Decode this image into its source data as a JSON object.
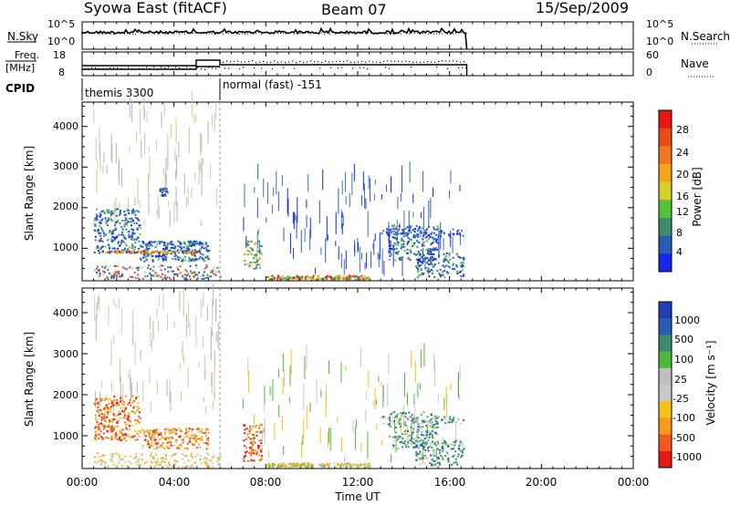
{
  "header": {
    "station": "Syowa East (fitACF)",
    "beam": "Beam 07",
    "date": "15/Sep/2009"
  },
  "colors": {
    "power_scale": [
      "#1428e6",
      "#2a5bb3",
      "#3e8a6e",
      "#59c03c",
      "#d6cf2a",
      "#f4a41a",
      "#f07820",
      "#e84a1a",
      "#e51818"
    ],
    "velocity_scale": [
      "#e51818",
      "#ef5a1e",
      "#f49a1c",
      "#f5c21a",
      "#c8c8c8",
      "#bfbfbf",
      "#4fb83a",
      "#3e8a6e",
      "#2a5bb3",
      "#1e3fb5"
    ]
  },
  "chart_data": [
    {
      "name": "N.Sky / N.Search",
      "type": "line",
      "ylabel_left": "N.Sky",
      "ylabel_right": "N.Search",
      "ytick_left": [
        "10^5",
        "10^0"
      ],
      "ytick_right": [
        "10^5",
        "10^0"
      ],
      "x_range_hours": [
        0,
        24
      ],
      "data_end_hour": 16.75
    },
    {
      "name": "Freq / Nave",
      "type": "line",
      "ylabel_left": "Freq. [MHz]",
      "ylabel_right": "Nave",
      "ytick_left": [
        "18",
        "8"
      ],
      "ytick_right": [
        "60",
        "0"
      ],
      "x_range_hours": [
        0,
        24
      ],
      "data_end_hour": 16.75
    },
    {
      "name": "CPID",
      "type": "table",
      "label": "CPID",
      "segments": [
        {
          "start_hour": 0,
          "end_hour": 6,
          "text": "themis 3300"
        },
        {
          "start_hour": 6,
          "end_hour": 16.75,
          "text": "normal (fast) -151"
        }
      ]
    },
    {
      "name": "Power",
      "type": "heatmap",
      "ylabel": "Slant Range [km]",
      "yticks": [
        "1000",
        "2000",
        "3000",
        "4000"
      ],
      "ylim": [
        200,
        4600
      ],
      "colorbar_label": "Power [dB]",
      "colorbar_ticks": [
        "4",
        "8",
        "12",
        "16",
        "20",
        "24",
        "28"
      ],
      "x_range_hours": [
        0,
        24
      ]
    },
    {
      "name": "Velocity",
      "type": "heatmap",
      "ylabel": "Slant Range [km]",
      "yticks": [
        "1000",
        "2000",
        "3000",
        "4000"
      ],
      "ylim": [
        200,
        4600
      ],
      "colorbar_label": "Velocity [m s^-1]",
      "colorbar_ticks": [
        "1000",
        "500",
        "100",
        "25",
        "-25",
        "-100",
        "-500",
        "-1000"
      ],
      "x_range_hours": [
        0,
        24
      ]
    }
  ],
  "xaxis": {
    "ticks": [
      "00:00",
      "04:00",
      "08:00",
      "12:00",
      "16:00",
      "20:00",
      "00:00"
    ],
    "label": "Time UT"
  }
}
